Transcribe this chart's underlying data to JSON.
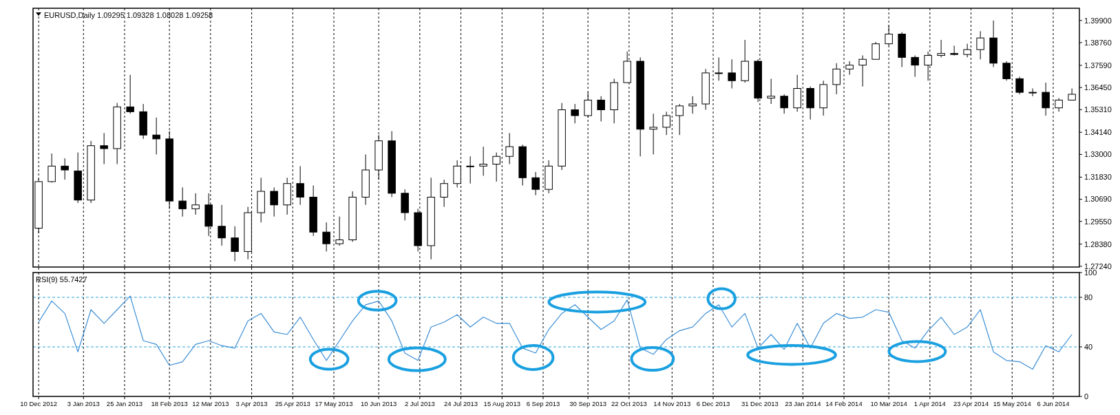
{
  "chart_data": [
    {
      "type": "candlestick",
      "title": "EURUSD,Daily 1.09295 1.09328 1.08028 1.09258",
      "x": [
        "2012-12-10",
        "2012-12-17",
        "2012-12-24",
        "2012-12-31",
        "2013-01-07",
        "2013-01-14",
        "2013-01-21",
        "2013-01-28",
        "2013-02-04",
        "2013-02-11",
        "2013-02-18",
        "2013-02-25",
        "2013-03-04",
        "2013-03-11",
        "2013-03-18",
        "2013-03-25",
        "2013-04-01",
        "2013-04-08",
        "2013-04-15",
        "2013-04-22",
        "2013-04-29",
        "2013-05-06",
        "2013-05-13",
        "2013-05-20",
        "2013-05-27",
        "2013-06-03",
        "2013-06-10",
        "2013-06-17",
        "2013-06-24",
        "2013-07-01",
        "2013-07-08",
        "2013-07-15",
        "2013-07-22",
        "2013-07-29",
        "2013-08-05",
        "2013-08-12",
        "2013-08-19",
        "2013-08-26",
        "2013-09-02",
        "2013-09-09",
        "2013-09-16",
        "2013-09-23",
        "2013-09-30",
        "2013-10-07",
        "2013-10-14",
        "2013-10-21",
        "2013-10-28",
        "2013-11-04",
        "2013-11-11",
        "2013-11-18",
        "2013-11-25",
        "2013-12-02",
        "2013-12-09",
        "2013-12-16",
        "2013-12-23",
        "2013-12-30",
        "2014-01-06",
        "2014-01-13",
        "2014-01-20",
        "2014-01-27",
        "2014-02-03",
        "2014-02-10",
        "2014-02-17",
        "2014-02-24",
        "2014-03-03",
        "2014-03-10",
        "2014-03-17",
        "2014-03-24",
        "2014-03-31",
        "2014-04-07",
        "2014-04-14",
        "2014-04-21",
        "2014-04-28",
        "2014-05-05",
        "2014-05-12",
        "2014-05-19",
        "2014-05-26",
        "2014-06-02",
        "2014-06-09",
        "2014-06-16"
      ],
      "ohlc": [
        [
          1.292,
          1.3175,
          1.2895,
          1.316
        ],
        [
          1.316,
          1.3305,
          1.3155,
          1.324
        ],
        [
          1.324,
          1.328,
          1.317,
          1.322
        ],
        [
          1.3215,
          1.331,
          1.305,
          1.3065
        ],
        [
          1.3065,
          1.337,
          1.305,
          1.3345
        ],
        [
          1.3345,
          1.341,
          1.325,
          1.333
        ],
        [
          1.333,
          1.3565,
          1.325,
          1.3545
        ],
        [
          1.3545,
          1.371,
          1.351,
          1.352
        ],
        [
          1.352,
          1.356,
          1.338,
          1.34
        ],
        [
          1.34,
          1.349,
          1.33,
          1.338
        ],
        [
          1.338,
          1.342,
          1.302,
          1.306
        ],
        [
          1.306,
          1.313,
          1.298,
          1.302
        ],
        [
          1.302,
          1.31,
          1.299,
          1.304
        ],
        [
          1.304,
          1.31,
          1.288,
          1.293
        ],
        [
          1.293,
          1.304,
          1.283,
          1.287
        ],
        [
          1.287,
          1.293,
          1.275,
          1.28
        ],
        [
          1.28,
          1.303,
          1.276,
          1.3
        ],
        [
          1.3,
          1.318,
          1.295,
          1.311
        ],
        [
          1.311,
          1.313,
          1.298,
          1.304
        ],
        [
          1.304,
          1.318,
          1.299,
          1.315
        ],
        [
          1.315,
          1.324,
          1.304,
          1.308
        ],
        [
          1.308,
          1.314,
          1.288,
          1.29
        ],
        [
          1.29,
          1.295,
          1.28,
          1.284
        ],
        [
          1.284,
          1.298,
          1.283,
          1.286
        ],
        [
          1.286,
          1.311,
          1.285,
          1.308
        ],
        [
          1.308,
          1.33,
          1.304,
          1.322
        ],
        [
          1.322,
          1.34,
          1.317,
          1.337
        ],
        [
          1.337,
          1.342,
          1.308,
          1.31
        ],
        [
          1.31,
          1.312,
          1.296,
          1.3
        ],
        [
          1.3,
          1.302,
          1.28,
          1.283
        ],
        [
          1.283,
          1.318,
          1.276,
          1.308
        ],
        [
          1.308,
          1.317,
          1.303,
          1.315
        ],
        [
          1.315,
          1.327,
          1.313,
          1.324
        ],
        [
          1.324,
          1.329,
          1.315,
          1.324
        ],
        [
          1.324,
          1.334,
          1.319,
          1.325
        ],
        [
          1.325,
          1.331,
          1.316,
          1.329
        ],
        [
          1.329,
          1.341,
          1.325,
          1.334
        ],
        [
          1.334,
          1.335,
          1.314,
          1.318
        ],
        [
          1.318,
          1.321,
          1.309,
          1.312
        ],
        [
          1.312,
          1.327,
          1.31,
          1.324
        ],
        [
          1.324,
          1.3565,
          1.322,
          1.353
        ],
        [
          1.353,
          1.356,
          1.346,
          1.35
        ],
        [
          1.35,
          1.362,
          1.349,
          1.358
        ],
        [
          1.358,
          1.36,
          1.347,
          1.353
        ],
        [
          1.353,
          1.369,
          1.346,
          1.367
        ],
        [
          1.367,
          1.383,
          1.367,
          1.378
        ],
        [
          1.378,
          1.38,
          1.329,
          1.343
        ],
        [
          1.343,
          1.351,
          1.33,
          1.344
        ],
        [
          1.344,
          1.352,
          1.34,
          1.35
        ],
        [
          1.35,
          1.356,
          1.34,
          1.355
        ],
        [
          1.355,
          1.36,
          1.351,
          1.356
        ],
        [
          1.356,
          1.374,
          1.353,
          1.372
        ],
        [
          1.372,
          1.38,
          1.368,
          1.372
        ],
        [
          1.372,
          1.379,
          1.364,
          1.368
        ],
        [
          1.368,
          1.389,
          1.367,
          1.378
        ],
        [
          1.378,
          1.379,
          1.357,
          1.359
        ],
        [
          1.359,
          1.369,
          1.356,
          1.36
        ],
        [
          1.36,
          1.361,
          1.351,
          1.354
        ],
        [
          1.354,
          1.371,
          1.352,
          1.364
        ],
        [
          1.364,
          1.365,
          1.348,
          1.354
        ],
        [
          1.354,
          1.368,
          1.35,
          1.366
        ],
        [
          1.366,
          1.377,
          1.361,
          1.374
        ],
        [
          1.374,
          1.378,
          1.371,
          1.376
        ],
        [
          1.376,
          1.381,
          1.365,
          1.379
        ],
        [
          1.379,
          1.388,
          1.379,
          1.387
        ],
        [
          1.387,
          1.3965,
          1.386,
          1.392
        ],
        [
          1.392,
          1.393,
          1.375,
          1.38
        ],
        [
          1.38,
          1.381,
          1.37,
          1.376
        ],
        [
          1.376,
          1.383,
          1.368,
          1.381
        ],
        [
          1.381,
          1.389,
          1.38,
          1.382
        ],
        [
          1.382,
          1.386,
          1.381,
          1.3815
        ],
        [
          1.3815,
          1.387,
          1.38,
          1.384
        ],
        [
          1.384,
          1.3935,
          1.379,
          1.39
        ],
        [
          1.39,
          1.399,
          1.375,
          1.377
        ],
        [
          1.377,
          1.378,
          1.368,
          1.369
        ],
        [
          1.369,
          1.37,
          1.361,
          1.362
        ],
        [
          1.362,
          1.364,
          1.36,
          1.362
        ],
        [
          1.362,
          1.367,
          1.35,
          1.354
        ],
        [
          1.354,
          1.359,
          1.352,
          1.358
        ],
        [
          1.358,
          1.364,
          1.358,
          1.361
        ]
      ],
      "xlim": [
        "2012-12-07",
        "2014-06-20"
      ],
      "xticks": [
        {
          "value": "2012-12-10",
          "label": null
        },
        {
          "value": "2013-01-03",
          "label": null
        },
        {
          "value": "2013-01-25",
          "label": null
        },
        {
          "value": "2013-02-18",
          "label": null
        },
        {
          "value": "2013-03-12",
          "label": null
        },
        {
          "value": "2013-04-03",
          "label": null
        },
        {
          "value": "2013-04-25",
          "label": null
        },
        {
          "value": "2013-05-17",
          "label": null
        },
        {
          "value": "2013-06-10",
          "label": null
        },
        {
          "value": "2013-07-02",
          "label": null
        },
        {
          "value": "2013-07-24",
          "label": null
        },
        {
          "value": "2013-08-15",
          "label": null
        },
        {
          "value": "2013-09-06",
          "label": null
        },
        {
          "value": "2013-09-30",
          "label": null
        },
        {
          "value": "2013-10-22",
          "label": null
        },
        {
          "value": "2013-11-14",
          "label": null
        },
        {
          "value": "2013-12-06",
          "label": null
        },
        {
          "value": "2013-12-31",
          "label": null
        },
        {
          "value": "2014-01-23",
          "label": null
        },
        {
          "value": "2014-02-14",
          "label": null
        },
        {
          "value": "2014-03-10",
          "label": null
        },
        {
          "value": "2014-04-01",
          "label": null
        },
        {
          "value": "2014-04-23",
          "label": null
        },
        {
          "value": "2014-05-15",
          "label": null
        },
        {
          "value": "2014-06-06",
          "label": null
        }
      ],
      "ylim": [
        1.272,
        1.4053
      ],
      "yticks": [
        {
          "value": 1.399,
          "label": "1.39900"
        },
        {
          "value": 1.3876,
          "label": "1.38760"
        },
        {
          "value": 1.3759,
          "label": "1.37590"
        },
        {
          "value": 1.3645,
          "label": "1.36450"
        },
        {
          "value": 1.3531,
          "label": "1.35310"
        },
        {
          "value": 1.3414,
          "label": "1.34140"
        },
        {
          "value": 1.33,
          "label": "1.33000"
        },
        {
          "value": 1.3183,
          "label": "1.31830"
        },
        {
          "value": 1.3069,
          "label": "1.30690"
        },
        {
          "value": 1.2955,
          "label": "1.29550"
        },
        {
          "value": 1.2838,
          "label": "1.28380"
        },
        {
          "value": 1.2724,
          "label": "1.27240"
        }
      ],
      "grid": "x",
      "tick_labels": "y"
    },
    {
      "type": "line",
      "title": "RSI(9) 55.7427",
      "x": [
        "2012-12-10",
        "2012-12-17",
        "2012-12-24",
        "2012-12-31",
        "2013-01-07",
        "2013-01-14",
        "2013-01-21",
        "2013-01-28",
        "2013-02-04",
        "2013-02-11",
        "2013-02-18",
        "2013-02-25",
        "2013-03-04",
        "2013-03-11",
        "2013-03-18",
        "2013-03-25",
        "2013-04-01",
        "2013-04-08",
        "2013-04-15",
        "2013-04-22",
        "2013-04-29",
        "2013-05-06",
        "2013-05-13",
        "2013-05-20",
        "2013-05-27",
        "2013-06-03",
        "2013-06-10",
        "2013-06-17",
        "2013-06-24",
        "2013-07-01",
        "2013-07-08",
        "2013-07-15",
        "2013-07-22",
        "2013-07-29",
        "2013-08-05",
        "2013-08-12",
        "2013-08-19",
        "2013-08-26",
        "2013-09-02",
        "2013-09-09",
        "2013-09-16",
        "2013-09-23",
        "2013-09-30",
        "2013-10-07",
        "2013-10-14",
        "2013-10-21",
        "2013-10-28",
        "2013-11-04",
        "2013-11-11",
        "2013-11-18",
        "2013-11-25",
        "2013-12-02",
        "2013-12-09",
        "2013-12-16",
        "2013-12-23",
        "2013-12-30",
        "2014-01-06",
        "2014-01-13",
        "2014-01-20",
        "2014-01-27",
        "2014-02-03",
        "2014-02-10",
        "2014-02-17",
        "2014-02-24",
        "2014-03-03",
        "2014-03-10",
        "2014-03-17",
        "2014-03-24",
        "2014-03-31",
        "2014-04-07",
        "2014-04-14",
        "2014-04-21",
        "2014-04-28",
        "2014-05-05",
        "2014-05-12",
        "2014-05-19",
        "2014-05-26",
        "2014-06-02",
        "2014-06-09",
        "2014-06-16"
      ],
      "series": [
        {
          "color": "#3b8ed6",
          "values": [
            60,
            77,
            67,
            36,
            70,
            59,
            70,
            81,
            45,
            42,
            25,
            28,
            42,
            45,
            41,
            39,
            61,
            67,
            52,
            50,
            64,
            46,
            29,
            45,
            61,
            74,
            77,
            61,
            35,
            29,
            56,
            60,
            66,
            56,
            64,
            59,
            59,
            39,
            35,
            54,
            67,
            74,
            64,
            54,
            61,
            78,
            39,
            34,
            46,
            53,
            56,
            67,
            74,
            56,
            67,
            39,
            50,
            38,
            59,
            39,
            59,
            67,
            63,
            64,
            70,
            68,
            45,
            39,
            53,
            64,
            50,
            56,
            70,
            36,
            29,
            28,
            22,
            41,
            36,
            50
          ]
        }
      ],
      "xlim": [
        "2012-12-07",
        "2014-06-20"
      ],
      "xticks": [
        {
          "value": "2012-12-10",
          "label": "10 Dec 2012"
        },
        {
          "value": "2013-01-03",
          "label": "3 Jan 2013"
        },
        {
          "value": "2013-01-25",
          "label": "25 Jan 2013"
        },
        {
          "value": "2013-02-18",
          "label": "18 Feb 2013"
        },
        {
          "value": "2013-03-12",
          "label": "12 Mar 2013"
        },
        {
          "value": "2013-04-03",
          "label": "3 Apr 2013"
        },
        {
          "value": "2013-04-25",
          "label": "25 Apr 2013"
        },
        {
          "value": "2013-05-17",
          "label": "17 May 2013"
        },
        {
          "value": "2013-06-10",
          "label": "10 Jun 2013"
        },
        {
          "value": "2013-07-02",
          "label": "2 Jul 2013"
        },
        {
          "value": "2013-07-24",
          "label": "24 Jul 2013"
        },
        {
          "value": "2013-08-15",
          "label": "15 Aug 2013"
        },
        {
          "value": "2013-09-06",
          "label": "6 Sep 2013"
        },
        {
          "value": "2013-09-30",
          "label": "30 Sep 2013"
        },
        {
          "value": "2013-10-22",
          "label": "22 Oct 2013"
        },
        {
          "value": "2013-11-14",
          "label": "14 Nov 2013"
        },
        {
          "value": "2013-12-06",
          "label": "6 Dec 2013"
        },
        {
          "value": "2013-12-31",
          "label": "31 Dec 2013"
        },
        {
          "value": "2014-01-23",
          "label": "23 Jan 2014"
        },
        {
          "value": "2014-02-14",
          "label": "14 Feb 2014"
        },
        {
          "value": "2014-03-10",
          "label": "10 Mar 2014"
        },
        {
          "value": "2014-04-01",
          "label": "1 Apr 2014"
        },
        {
          "value": "2014-04-23",
          "label": "23 Apr 2014"
        },
        {
          "value": "2014-05-15",
          "label": "15 May 2014"
        },
        {
          "value": "2014-06-06",
          "label": "6 Jun 2014"
        }
      ],
      "ylim": [
        0,
        100
      ],
      "yticks": [
        0,
        40,
        80,
        100
      ],
      "ref_lines": [
        {
          "axis": "y",
          "value": 80,
          "color": "#29a3d6",
          "line_style": "dashed"
        },
        {
          "axis": "y",
          "value": 40,
          "color": "#29a3d6",
          "line_style": "dashed"
        }
      ],
      "grid": "x"
    }
  ]
}
